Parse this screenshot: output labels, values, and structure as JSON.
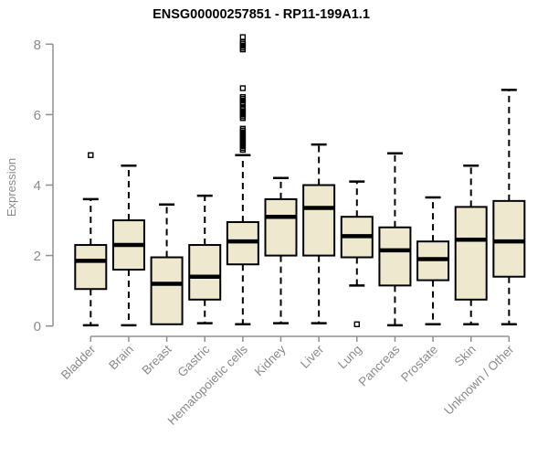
{
  "chart_data": {
    "type": "boxplot",
    "title": "ENSG00000257851 - RP11-199A1.1",
    "ylabel": "Expression",
    "xlabel": "",
    "ylim": [
      0,
      8
    ],
    "yticks": [
      0,
      2,
      4,
      6,
      8
    ],
    "grid": false,
    "legend": "none",
    "categories": [
      "Bladder",
      "Brain",
      "Breast",
      "Gastric",
      "Hematopoietic cells",
      "Kidney",
      "Liver",
      "Lung",
      "Pancreas",
      "Prostate",
      "Skin",
      "Unknown / Other"
    ],
    "boxes": [
      {
        "category": "Bladder",
        "whisker_low": 0.02,
        "q1": 1.05,
        "median": 1.85,
        "q3": 2.3,
        "whisker_high": 3.6,
        "outliers": [
          4.85
        ]
      },
      {
        "category": "Brain",
        "whisker_low": 0.02,
        "q1": 1.6,
        "median": 2.3,
        "q3": 3.0,
        "whisker_high": 4.55,
        "outliers": []
      },
      {
        "category": "Breast",
        "whisker_low": 0.05,
        "q1": 0.05,
        "median": 1.2,
        "q3": 1.95,
        "whisker_high": 3.45,
        "outliers": []
      },
      {
        "category": "Gastric",
        "whisker_low": 0.08,
        "q1": 0.75,
        "median": 1.4,
        "q3": 2.3,
        "whisker_high": 3.7,
        "outliers": []
      },
      {
        "category": "Hematopoietic cells",
        "whisker_low": 0.05,
        "q1": 1.75,
        "median": 2.4,
        "q3": 2.95,
        "whisker_high": 4.85,
        "outliers": [
          8.2,
          8.05,
          8.0,
          7.95,
          7.9,
          7.85,
          6.75,
          6.5,
          6.45,
          6.4,
          6.35,
          6.3,
          6.2,
          6.15,
          6.1,
          6.05,
          6.0,
          5.95,
          5.9,
          5.6,
          5.55,
          5.5,
          5.45,
          5.4,
          5.35,
          5.3,
          5.25,
          5.2,
          5.15,
          5.1,
          5.05,
          5.0
        ]
      },
      {
        "category": "Kidney",
        "whisker_low": 0.08,
        "q1": 2.0,
        "median": 3.1,
        "q3": 3.6,
        "whisker_high": 4.2,
        "outliers": []
      },
      {
        "category": "Liver",
        "whisker_low": 0.08,
        "q1": 2.0,
        "median": 3.35,
        "q3": 4.0,
        "whisker_high": 5.15,
        "outliers": []
      },
      {
        "category": "Lung",
        "whisker_low": 1.15,
        "q1": 1.95,
        "median": 2.55,
        "q3": 3.1,
        "whisker_high": 4.1,
        "outliers": [
          0.05
        ]
      },
      {
        "category": "Pancreas",
        "whisker_low": 0.02,
        "q1": 1.15,
        "median": 2.15,
        "q3": 2.8,
        "whisker_high": 4.9,
        "outliers": []
      },
      {
        "category": "Prostate",
        "whisker_low": 0.05,
        "q1": 1.3,
        "median": 1.9,
        "q3": 2.4,
        "whisker_high": 3.65,
        "outliers": []
      },
      {
        "category": "Skin",
        "whisker_low": 0.05,
        "q1": 0.75,
        "median": 2.45,
        "q3": 3.38,
        "whisker_high": 4.55,
        "outliers": []
      },
      {
        "category": "Unknown / Other",
        "whisker_low": 0.05,
        "q1": 1.4,
        "median": 2.4,
        "q3": 3.55,
        "whisker_high": 6.7,
        "outliers": []
      }
    ],
    "colors": {
      "box_fill": "#ede8ce",
      "box_border": "#000000",
      "median": "#000000",
      "whisker": "#000000",
      "outlier": "#000000",
      "axis": "#8f8f8f",
      "tick_label": "#8a8a8a",
      "title": "#000000",
      "background": "#ffffff"
    }
  }
}
